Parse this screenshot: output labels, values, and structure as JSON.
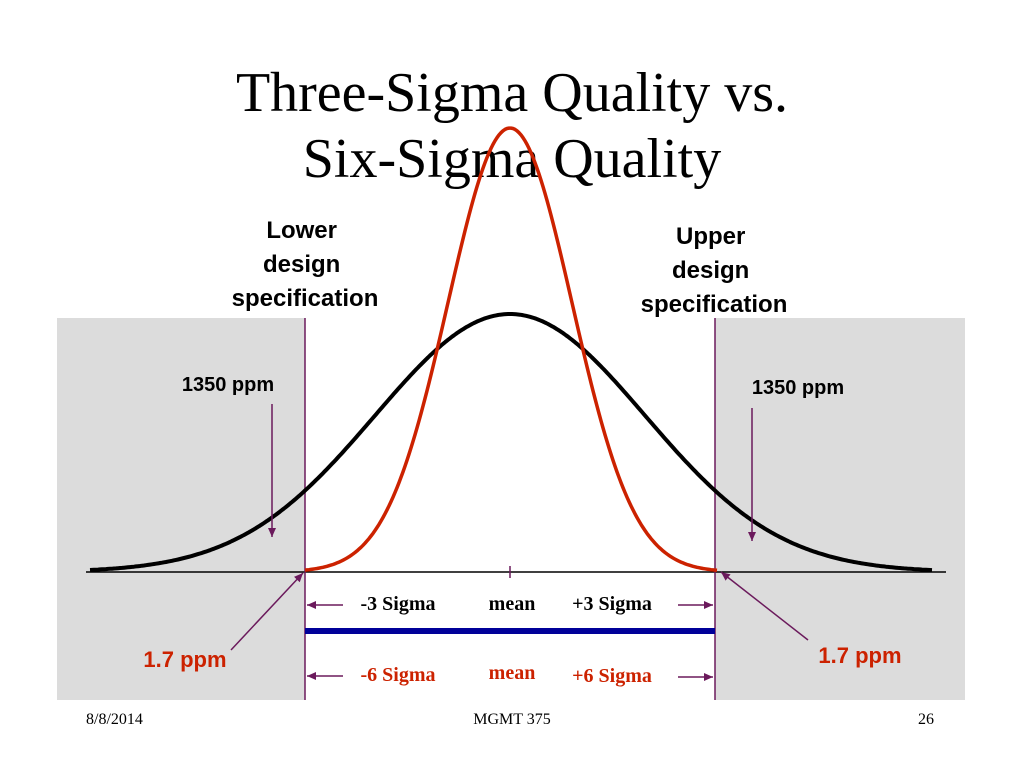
{
  "title": {
    "line1": "Three-Sigma Quality vs.",
    "line2": "Six-Sigma Quality"
  },
  "labels": {
    "lower_spec": [
      "Lower",
      "design",
      "specification"
    ],
    "upper_spec": [
      "Upper",
      "design",
      "specification"
    ],
    "left_ppm_three": "1350 ppm",
    "right_ppm_three": "1350 ppm",
    "left_ppm_six": "1.7 ppm",
    "right_ppm_six": "1.7 ppm",
    "three_sigma_minus": "-3 Sigma",
    "three_sigma_mean": "mean",
    "three_sigma_plus": "+3 Sigma",
    "six_sigma_minus": "-6 Sigma",
    "six_sigma_mean": "mean",
    "six_sigma_plus": "+6 Sigma"
  },
  "colors": {
    "three_sigma_curve": "#000000",
    "six_sigma_curve": "#cc2200",
    "spec_lines": "#6b1a5c",
    "blue_bar": "#000099",
    "shaded_region": "#dcdcdc",
    "orange_text": "#cc2200"
  },
  "footer": {
    "date": "8/8/2014",
    "course": "MGMT 375",
    "page": "26"
  }
}
